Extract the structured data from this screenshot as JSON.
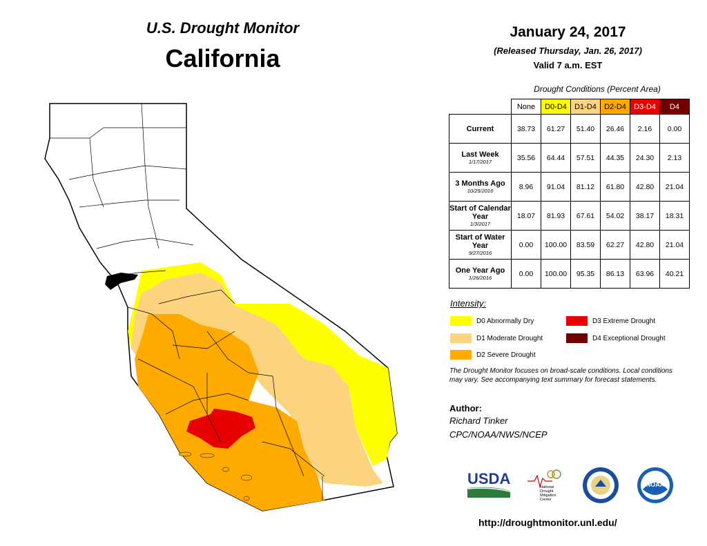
{
  "header": {
    "title": "U.S. Drought Monitor",
    "state": "California",
    "date": "January 24, 2017",
    "released": "(Released Thursday, Jan. 26, 2017)",
    "valid": "Valid 7 a.m. EST"
  },
  "table": {
    "caption": "Drought Conditions (Percent Area)",
    "columns": [
      {
        "label": "None",
        "color": "#ffffff",
        "text_color": "#000000"
      },
      {
        "label": "D0-D4",
        "color": "#ffff00",
        "text_color": "#000000"
      },
      {
        "label": "D1-D4",
        "color": "#fcd37f",
        "text_color": "#000000"
      },
      {
        "label": "D2-D4",
        "color": "#ffaa00",
        "text_color": "#000000"
      },
      {
        "label": "D3-D4",
        "color": "#e60000",
        "text_color": "#ffffff"
      },
      {
        "label": "D4",
        "color": "#730000",
        "text_color": "#ffffff"
      }
    ],
    "rows": [
      {
        "label": "Current",
        "sublabel": "",
        "values": [
          "38.73",
          "61.27",
          "51.40",
          "26.46",
          "2.16",
          "0.00"
        ]
      },
      {
        "label": "Last Week",
        "sublabel": "1/17/2017",
        "values": [
          "35.56",
          "64.44",
          "57.51",
          "44.35",
          "24.30",
          "2.13"
        ]
      },
      {
        "label": "3 Months Ago",
        "sublabel": "10/25/2016",
        "values": [
          "8.96",
          "91.04",
          "81.12",
          "61.80",
          "42.80",
          "21.04"
        ]
      },
      {
        "label": "Start of Calendar Year",
        "sublabel": "1/3/2017",
        "values": [
          "18.07",
          "81.93",
          "67.61",
          "54.02",
          "38.17",
          "18.31"
        ]
      },
      {
        "label": "Start of Water Year",
        "sublabel": "9/27/2016",
        "values": [
          "0.00",
          "100.00",
          "83.59",
          "62.27",
          "42.80",
          "21.04"
        ]
      },
      {
        "label": "One Year Ago",
        "sublabel": "1/26/2016",
        "values": [
          "0.00",
          "100.00",
          "95.35",
          "86.13",
          "63.96",
          "40.21"
        ]
      }
    ]
  },
  "legend": {
    "title": "Intensity:",
    "items": [
      {
        "label": "D0 Abnormally Dry",
        "color": "#ffff00"
      },
      {
        "label": "D1 Moderate Drought",
        "color": "#fcd37f"
      },
      {
        "label": "D2 Severe Drought",
        "color": "#ffaa00"
      },
      {
        "label": "D3 Extreme Drought",
        "color": "#e60000"
      },
      {
        "label": "D4 Exceptional Drought",
        "color": "#730000"
      }
    ]
  },
  "note": "The Drought Monitor focuses on broad-scale conditions. Local conditions may vary. See accompanying text summary for forecast statements.",
  "author": {
    "label": "Author:",
    "name": "Richard Tinker",
    "org": "CPC/NOAA/NWS/NCEP"
  },
  "logos": {
    "usda": "USDA",
    "ndmc": [
      "National",
      "Drought",
      "Mitigation",
      "Center"
    ],
    "noaa": "NOAA"
  },
  "url": "http://droughtmonitor.unl.edu/"
}
